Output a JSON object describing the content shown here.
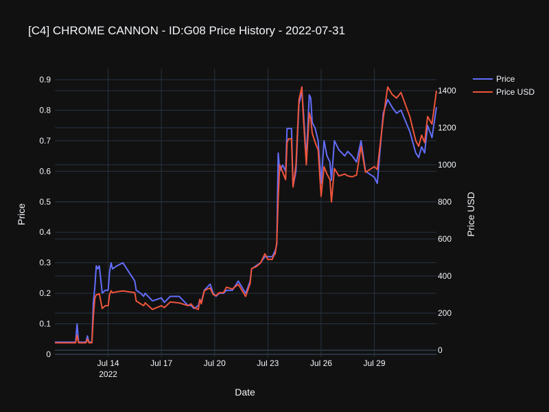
{
  "chart_data": {
    "type": "line",
    "title": "[C4] CHROME CANNON - ID:G08 Price History - 2022-07-31",
    "xlabel": "Date",
    "ylabel": "Price",
    "y2label": "Price USD",
    "xlim": [
      "2022-07-11T00:00",
      "2022-08-01T12:00"
    ],
    "ylim": [
      0,
      0.9
    ],
    "y2lim": [
      0,
      1400
    ],
    "x_ticks": [
      {
        "date": "2022-07-14",
        "label": "Jul 14",
        "sub": "2022"
      },
      {
        "date": "2022-07-17",
        "label": "Jul 17",
        "sub": ""
      },
      {
        "date": "2022-07-20",
        "label": "Jul 20",
        "sub": ""
      },
      {
        "date": "2022-07-23",
        "label": "Jul 23",
        "sub": ""
      },
      {
        "date": "2022-07-26",
        "label": "Jul 26",
        "sub": ""
      },
      {
        "date": "2022-07-29",
        "label": "Jul 29",
        "sub": ""
      }
    ],
    "y_ticks": [
      "0",
      "0.1",
      "0.2",
      "0.3",
      "0.4",
      "0.5",
      "0.6",
      "0.7",
      "0.8",
      "0.9"
    ],
    "y2_ticks": [
      "0",
      "200",
      "400",
      "600",
      "800",
      "1000",
      "1200",
      "1400"
    ],
    "grid": true,
    "legend_position": "top-right",
    "series": [
      {
        "name": "Price",
        "axis": "y",
        "color": "#636efa",
        "points": [
          [
            "2022-07-11T00:00",
            0.04
          ],
          [
            "2022-07-11T12:00",
            0.04
          ],
          [
            "2022-07-11T20:00",
            0.04
          ],
          [
            "2022-07-12T04:00",
            0.04
          ],
          [
            "2022-07-12T06:00",
            0.1
          ],
          [
            "2022-07-12T08:00",
            0.04
          ],
          [
            "2022-07-12T18:00",
            0.04
          ],
          [
            "2022-07-12T20:00",
            0.06
          ],
          [
            "2022-07-12T22:00",
            0.04
          ],
          [
            "2022-07-13T02:00",
            0.04
          ],
          [
            "2022-07-13T04:00",
            0.17
          ],
          [
            "2022-07-13T06:00",
            0.22
          ],
          [
            "2022-07-13T08:00",
            0.29
          ],
          [
            "2022-07-13T10:00",
            0.28
          ],
          [
            "2022-07-13T12:00",
            0.29
          ],
          [
            "2022-07-13T16:00",
            0.2
          ],
          [
            "2022-07-13T20:00",
            0.21
          ],
          [
            "2022-07-14T00:00",
            0.21
          ],
          [
            "2022-07-14T02:00",
            0.27
          ],
          [
            "2022-07-14T04:00",
            0.3
          ],
          [
            "2022-07-14T06:00",
            0.28
          ],
          [
            "2022-07-14T12:00",
            0.29
          ],
          [
            "2022-07-14T20:00",
            0.3
          ],
          [
            "2022-07-15T12:00",
            0.24
          ],
          [
            "2022-07-15T14:00",
            0.21
          ],
          [
            "2022-07-15T20:00",
            0.2
          ],
          [
            "2022-07-16T00:00",
            0.19
          ],
          [
            "2022-07-16T02:00",
            0.2
          ],
          [
            "2022-07-16T12:00",
            0.175
          ],
          [
            "2022-07-17T00:00",
            0.185
          ],
          [
            "2022-07-17T04:00",
            0.17
          ],
          [
            "2022-07-17T12:00",
            0.19
          ],
          [
            "2022-07-18T00:00",
            0.19
          ],
          [
            "2022-07-18T12:00",
            0.16
          ],
          [
            "2022-07-18T16:00",
            0.16
          ],
          [
            "2022-07-18T20:00",
            0.15
          ],
          [
            "2022-07-19T02:00",
            0.16
          ],
          [
            "2022-07-19T04:00",
            0.18
          ],
          [
            "2022-07-19T06:00",
            0.17
          ],
          [
            "2022-07-19T10:00",
            0.21
          ],
          [
            "2022-07-19T14:00",
            0.22
          ],
          [
            "2022-07-19T18:00",
            0.23
          ],
          [
            "2022-07-19T22:00",
            0.2
          ],
          [
            "2022-07-20T02:00",
            0.19
          ],
          [
            "2022-07-20T06:00",
            0.2
          ],
          [
            "2022-07-20T12:00",
            0.2
          ],
          [
            "2022-07-20T16:00",
            0.21
          ],
          [
            "2022-07-21T00:00",
            0.21
          ],
          [
            "2022-07-21T08:00",
            0.24
          ],
          [
            "2022-07-21T18:00",
            0.2
          ],
          [
            "2022-07-22T00:00",
            0.24
          ],
          [
            "2022-07-22T02:00",
            0.28
          ],
          [
            "2022-07-22T08:00",
            0.29
          ],
          [
            "2022-07-22T14:00",
            0.3
          ],
          [
            "2022-07-22T20:00",
            0.32
          ],
          [
            "2022-07-23T00:00",
            0.32
          ],
          [
            "2022-07-23T06:00",
            0.32
          ],
          [
            "2022-07-23T08:00",
            0.33
          ],
          [
            "2022-07-23T10:00",
            0.34
          ],
          [
            "2022-07-23T12:00",
            0.36
          ],
          [
            "2022-07-23T14:00",
            0.66
          ],
          [
            "2022-07-23T16:00",
            0.6
          ],
          [
            "2022-07-23T20:00",
            0.62
          ],
          [
            "2022-07-24T00:00",
            0.6
          ],
          [
            "2022-07-24T02:00",
            0.74
          ],
          [
            "2022-07-24T04:00",
            0.74
          ],
          [
            "2022-07-24T08:00",
            0.74
          ],
          [
            "2022-07-24T10:00",
            0.55
          ],
          [
            "2022-07-24T14:00",
            0.6
          ],
          [
            "2022-07-24T18:00",
            0.82
          ],
          [
            "2022-07-24T22:00",
            0.86
          ],
          [
            "2022-07-25T00:00",
            0.8
          ],
          [
            "2022-07-25T04:00",
            0.64
          ],
          [
            "2022-07-25T08:00",
            0.85
          ],
          [
            "2022-07-25T10:00",
            0.84
          ],
          [
            "2022-07-25T12:00",
            0.76
          ],
          [
            "2022-07-25T16:00",
            0.74
          ],
          [
            "2022-07-25T20:00",
            0.7
          ],
          [
            "2022-07-26T00:00",
            0.56
          ],
          [
            "2022-07-26T04:00",
            0.7
          ],
          [
            "2022-07-26T08:00",
            0.65
          ],
          [
            "2022-07-26T12:00",
            0.63
          ],
          [
            "2022-07-26T14:00",
            0.57
          ],
          [
            "2022-07-26T18:00",
            0.7
          ],
          [
            "2022-07-27T00:00",
            0.67
          ],
          [
            "2022-07-27T08:00",
            0.65
          ],
          [
            "2022-07-27T12:00",
            0.665
          ],
          [
            "2022-07-27T18:00",
            0.65
          ],
          [
            "2022-07-28T00:00",
            0.63
          ],
          [
            "2022-07-28T06:00",
            0.7
          ],
          [
            "2022-07-28T12:00",
            0.6
          ],
          [
            "2022-07-29T00:00",
            0.58
          ],
          [
            "2022-07-29T04:00",
            0.56
          ],
          [
            "2022-07-29T12:00",
            0.79
          ],
          [
            "2022-07-29T18:00",
            0.835
          ],
          [
            "2022-07-30T00:00",
            0.81
          ],
          [
            "2022-07-30T06:00",
            0.79
          ],
          [
            "2022-07-30T12:00",
            0.8
          ],
          [
            "2022-07-31T00:00",
            0.73
          ],
          [
            "2022-07-31T08:00",
            0.66
          ],
          [
            "2022-07-31T12:00",
            0.645
          ],
          [
            "2022-07-31T16:00",
            0.68
          ],
          [
            "2022-07-31T20:00",
            0.66
          ],
          [
            "2022-08-01T00:00",
            0.75
          ],
          [
            "2022-08-01T06:00",
            0.71
          ],
          [
            "2022-08-01T12:00",
            0.81
          ]
        ]
      },
      {
        "name": "Price USD",
        "axis": "y2",
        "color": "#ef553b",
        "points": [
          [
            "2022-07-11T00:00",
            40
          ],
          [
            "2022-07-11T12:00",
            40
          ],
          [
            "2022-07-11T20:00",
            40
          ],
          [
            "2022-07-12T04:00",
            40
          ],
          [
            "2022-07-12T06:00",
            80
          ],
          [
            "2022-07-12T08:00",
            40
          ],
          [
            "2022-07-12T18:00",
            40
          ],
          [
            "2022-07-12T20:00",
            60
          ],
          [
            "2022-07-12T22:00",
            40
          ],
          [
            "2022-07-13T02:00",
            40
          ],
          [
            "2022-07-13T04:00",
            180
          ],
          [
            "2022-07-13T06:00",
            280
          ],
          [
            "2022-07-13T08:00",
            300
          ],
          [
            "2022-07-13T10:00",
            300
          ],
          [
            "2022-07-13T12:00",
            305
          ],
          [
            "2022-07-13T16:00",
            225
          ],
          [
            "2022-07-13T20:00",
            240
          ],
          [
            "2022-07-14T00:00",
            240
          ],
          [
            "2022-07-14T02:00",
            300
          ],
          [
            "2022-07-14T04:00",
            320
          ],
          [
            "2022-07-14T06:00",
            310
          ],
          [
            "2022-07-14T12:00",
            315
          ],
          [
            "2022-07-14T20:00",
            320
          ],
          [
            "2022-07-15T12:00",
            310
          ],
          [
            "2022-07-15T14:00",
            265
          ],
          [
            "2022-07-15T20:00",
            250
          ],
          [
            "2022-07-16T00:00",
            240
          ],
          [
            "2022-07-16T02:00",
            255
          ],
          [
            "2022-07-16T12:00",
            220
          ],
          [
            "2022-07-17T00:00",
            240
          ],
          [
            "2022-07-17T04:00",
            230
          ],
          [
            "2022-07-17T12:00",
            260
          ],
          [
            "2022-07-18T00:00",
            255
          ],
          [
            "2022-07-18T12:00",
            240
          ],
          [
            "2022-07-18T16:00",
            250
          ],
          [
            "2022-07-18T20:00",
            230
          ],
          [
            "2022-07-19T02:00",
            220
          ],
          [
            "2022-07-19T04:00",
            275
          ],
          [
            "2022-07-19T06:00",
            250
          ],
          [
            "2022-07-19T10:00",
            320
          ],
          [
            "2022-07-19T14:00",
            330
          ],
          [
            "2022-07-19T18:00",
            335
          ],
          [
            "2022-07-19T22:00",
            300
          ],
          [
            "2022-07-20T02:00",
            295
          ],
          [
            "2022-07-20T06:00",
            310
          ],
          [
            "2022-07-20T12:00",
            310
          ],
          [
            "2022-07-20T16:00",
            340
          ],
          [
            "2022-07-21T00:00",
            330
          ],
          [
            "2022-07-21T08:00",
            355
          ],
          [
            "2022-07-21T18:00",
            290
          ],
          [
            "2022-07-22T00:00",
            360
          ],
          [
            "2022-07-22T02:00",
            440
          ],
          [
            "2022-07-22T08:00",
            450
          ],
          [
            "2022-07-22T14:00",
            470
          ],
          [
            "2022-07-22T20:00",
            520
          ],
          [
            "2022-07-23T00:00",
            490
          ],
          [
            "2022-07-23T06:00",
            490
          ],
          [
            "2022-07-23T08:00",
            510
          ],
          [
            "2022-07-23T10:00",
            520
          ],
          [
            "2022-07-23T12:00",
            580
          ],
          [
            "2022-07-23T14:00",
            820
          ],
          [
            "2022-07-23T16:00",
            1000
          ],
          [
            "2022-07-23T20:00",
            960
          ],
          [
            "2022-07-24T00:00",
            920
          ],
          [
            "2022-07-24T02:00",
            1120
          ],
          [
            "2022-07-24T04:00",
            1140
          ],
          [
            "2022-07-24T08:00",
            1140
          ],
          [
            "2022-07-24T10:00",
            880
          ],
          [
            "2022-07-24T14:00",
            1000
          ],
          [
            "2022-07-24T18:00",
            1350
          ],
          [
            "2022-07-24T22:00",
            1420
          ],
          [
            "2022-07-25T00:00",
            1260
          ],
          [
            "2022-07-25T04:00",
            1000
          ],
          [
            "2022-07-25T08:00",
            1280
          ],
          [
            "2022-07-25T10:00",
            1250
          ],
          [
            "2022-07-25T12:00",
            1170
          ],
          [
            "2022-07-25T16:00",
            1120
          ],
          [
            "2022-07-25T20:00",
            1080
          ],
          [
            "2022-07-26T00:00",
            830
          ],
          [
            "2022-07-26T04:00",
            990
          ],
          [
            "2022-07-26T08:00",
            950
          ],
          [
            "2022-07-26T12:00",
            920
          ],
          [
            "2022-07-26T14:00",
            800
          ],
          [
            "2022-07-26T18:00",
            980
          ],
          [
            "2022-07-27T00:00",
            940
          ],
          [
            "2022-07-27T08:00",
            950
          ],
          [
            "2022-07-27T12:00",
            940
          ],
          [
            "2022-07-27T18:00",
            935
          ],
          [
            "2022-07-28T00:00",
            945
          ],
          [
            "2022-07-28T06:00",
            1100
          ],
          [
            "2022-07-28T12:00",
            960
          ],
          [
            "2022-07-29T00:00",
            990
          ],
          [
            "2022-07-29T04:00",
            975
          ],
          [
            "2022-07-29T12:00",
            1250
          ],
          [
            "2022-07-29T18:00",
            1420
          ],
          [
            "2022-07-30T00:00",
            1380
          ],
          [
            "2022-07-30T06:00",
            1360
          ],
          [
            "2022-07-30T12:00",
            1390
          ],
          [
            "2022-07-31T00:00",
            1260
          ],
          [
            "2022-07-31T08:00",
            1130
          ],
          [
            "2022-07-31T12:00",
            1100
          ],
          [
            "2022-07-31T16:00",
            1160
          ],
          [
            "2022-07-31T20:00",
            1120
          ],
          [
            "2022-08-01T00:00",
            1260
          ],
          [
            "2022-08-01T06:00",
            1220
          ],
          [
            "2022-08-01T12:00",
            1400
          ]
        ]
      }
    ]
  }
}
